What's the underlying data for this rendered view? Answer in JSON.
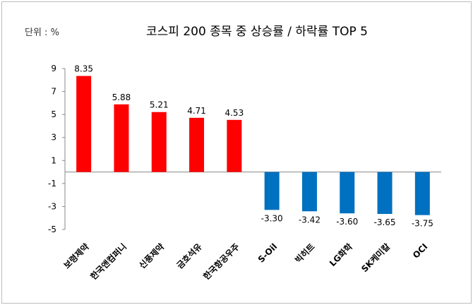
{
  "chart_data": {
    "type": "bar",
    "title": "코스피 200 종목 중  상승률 / 하락률 TOP 5",
    "unit_label": "단위 : %",
    "categories": [
      "보령제약",
      "한국앤컴퍼니",
      "신풍제약",
      "금호석유",
      "한국항공우주",
      "S-Oil",
      "빅히트",
      "LG화학",
      "SK케미칼",
      "OCI"
    ],
    "values": [
      8.35,
      5.88,
      5.21,
      4.71,
      4.53,
      -3.3,
      -3.42,
      -3.6,
      -3.65,
      -3.75
    ],
    "value_labels": [
      "8.35",
      "5.88",
      "5.21",
      "4.71",
      "4.53",
      "-3.30",
      "-3.42",
      "-3.60",
      "-3.65",
      "-3.75"
    ],
    "yticks": [
      9,
      7,
      5,
      3,
      1,
      -1,
      -3,
      -5
    ],
    "ytick_labels": [
      "9",
      "7",
      "5",
      "3",
      "1",
      "-1",
      "-3",
      "-5"
    ],
    "ylim": [
      -5,
      9
    ],
    "grid": false,
    "colors": {
      "positive": "#ff0000",
      "negative": "#0070c0"
    }
  }
}
